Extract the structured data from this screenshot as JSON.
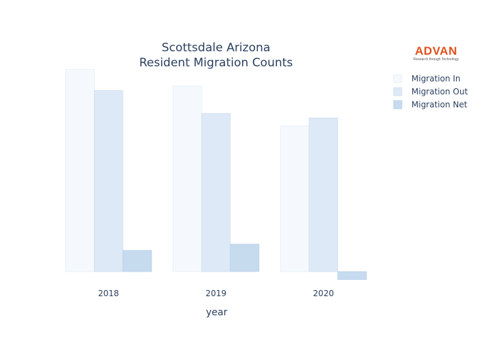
{
  "chart_data": {
    "type": "bar",
    "title_lines": [
      "Scottsdale Arizona",
      "Resident Migration Counts"
    ],
    "xlabel": "year",
    "ylabel": "",
    "categories": [
      "2018",
      "2019",
      "2020"
    ],
    "series": [
      {
        "name": "Migration In",
        "values": [
          11450,
          10500,
          8250
        ],
        "color": "#f5f9fd",
        "stroke": "#e6eef8"
      },
      {
        "name": "Migration Out",
        "values": [
          10250,
          8950,
          8700
        ],
        "color": "#dde9f6",
        "stroke": "#cfdff0"
      },
      {
        "name": "Migration Net",
        "values": [
          1200,
          1550,
          -450
        ],
        "color": "#c7dbef",
        "stroke": "#b8d0ea"
      }
    ],
    "ylim": [
      -500,
      11500
    ],
    "grid": false,
    "show_y_ticks": false,
    "legend_position": "top-right"
  },
  "logo": {
    "wordmark": "ADVAN",
    "tagline": "Research through Technology"
  }
}
